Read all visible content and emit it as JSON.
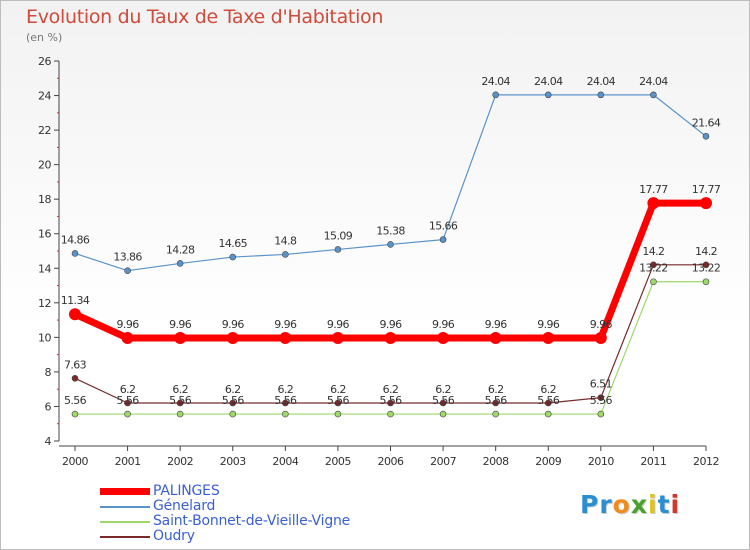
{
  "header": {
    "title": "Evolution du Taux de Taxe d'Habitation",
    "subtitle": "(en %)"
  },
  "brand": {
    "letters": [
      "P",
      "r",
      "o",
      "x",
      "i",
      "t",
      "i"
    ],
    "colors": [
      "#2a8fd1",
      "#2a8fd1",
      "#f28b1c",
      "#4aa02c",
      "#e0c21a",
      "#2a8fd1",
      "#d6352a"
    ]
  },
  "chart_data": {
    "type": "line",
    "title": "Evolution du Taux de Taxe d'Habitation",
    "subtitle": "(en %)",
    "xlabel": "",
    "ylabel": "",
    "x": [
      "2000",
      "2001",
      "2002",
      "2003",
      "2004",
      "2005",
      "2006",
      "2007",
      "2008",
      "2009",
      "2010",
      "2011",
      "2012"
    ],
    "ylim": [
      4,
      26
    ],
    "yticks": [
      "4",
      "6",
      "8",
      "10",
      "12",
      "14",
      "16",
      "18",
      "20",
      "22",
      "24",
      "26"
    ],
    "grid": false,
    "legend_position": "bottom-left",
    "series": [
      {
        "name": "Génelard",
        "color": "#5a93c9",
        "thick": false,
        "values": [
          14.86,
          13.86,
          14.28,
          14.65,
          14.8,
          15.09,
          15.38,
          15.66,
          24.04,
          24.04,
          24.04,
          24.04,
          21.64
        ],
        "labels": [
          "14.86",
          "13.86",
          "14.28",
          "14.65",
          "14.8",
          "15.09",
          "15.38",
          "15.66",
          "24.04",
          "24.04",
          "24.04",
          "24.04",
          "21.64"
        ]
      },
      {
        "name": "Saint-Bonnet-de-Vieille-Vigne",
        "color": "#9fd86a",
        "thick": false,
        "values": [
          5.56,
          5.56,
          5.56,
          5.56,
          5.56,
          5.56,
          5.56,
          5.56,
          5.56,
          5.56,
          5.56,
          13.22,
          13.22
        ],
        "labels": [
          "5.56",
          "5.56",
          "5.56",
          "5.56",
          "5.56",
          "5.56",
          "5.56",
          "5.56",
          "5.56",
          "5.56",
          "5.56",
          "13.22",
          "13.22"
        ]
      },
      {
        "name": "Oudry",
        "color": "#7a2a2a",
        "thick": false,
        "values": [
          7.63,
          6.2,
          6.2,
          6.2,
          6.2,
          6.2,
          6.2,
          6.2,
          6.2,
          6.2,
          6.51,
          14.2,
          14.2
        ],
        "labels": [
          "7.63",
          "6.2",
          "6.2",
          "6.2",
          "6.2",
          "6.2",
          "6.2",
          "6.2",
          "6.2",
          "6.2",
          "6.51",
          "14.2",
          "14.2"
        ]
      },
      {
        "name": "PALINGES",
        "color": "#ff0000",
        "thick": true,
        "values": [
          11.34,
          9.96,
          9.96,
          9.96,
          9.96,
          9.96,
          9.96,
          9.96,
          9.96,
          9.96,
          9.96,
          17.77,
          17.77
        ],
        "labels": [
          "11.34",
          "9.96",
          "9.96",
          "9.96",
          "9.96",
          "9.96",
          "9.96",
          "9.96",
          "9.96",
          "9.96",
          "9.96",
          "17.77",
          "17.77"
        ]
      }
    ],
    "legend": [
      "PALINGES",
      "Génelard",
      "Saint-Bonnet-de-Vieille-Vigne",
      "Oudry"
    ]
  }
}
